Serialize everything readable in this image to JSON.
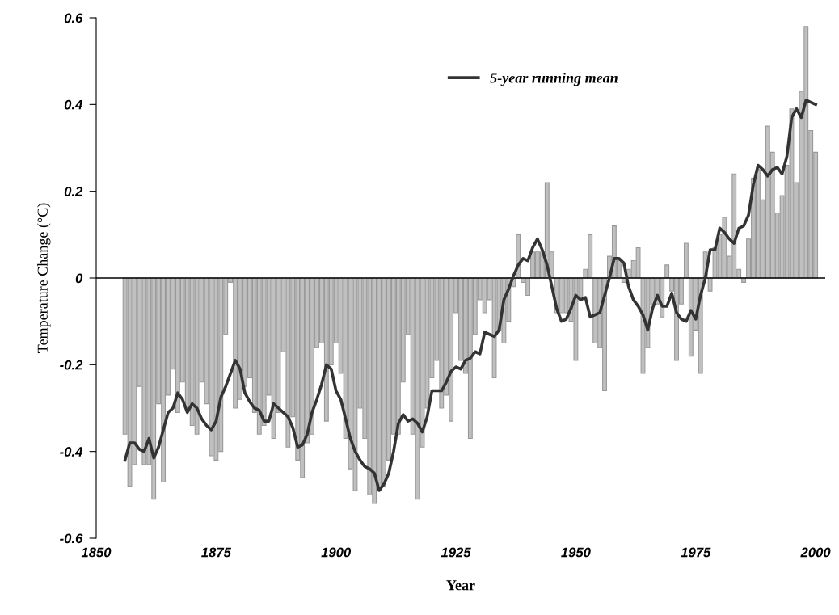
{
  "chart_data": {
    "type": "bar",
    "xlabel": "Year",
    "ylabel": "Temperature Change (°C)",
    "xlim": [
      1850,
      2002
    ],
    "ylim": [
      -0.6,
      0.6
    ],
    "xticks": [
      1850,
      1875,
      1900,
      1925,
      1950,
      1975,
      2000
    ],
    "yticks": [
      -0.6,
      -0.4,
      -0.2,
      0,
      0.2,
      0.4,
      0.6
    ],
    "grid": false,
    "legend": "top",
    "ref_lines": [
      {
        "axis": "y",
        "value": 0,
        "color": "#000000"
      }
    ],
    "series": [
      {
        "color": "#c0c0c0",
        "x": [
          1856,
          1857,
          1858,
          1859,
          1860,
          1861,
          1862,
          1863,
          1864,
          1865,
          1866,
          1867,
          1868,
          1869,
          1870,
          1871,
          1872,
          1873,
          1874,
          1875,
          1876,
          1877,
          1878,
          1879,
          1880,
          1881,
          1882,
          1883,
          1884,
          1885,
          1886,
          1887,
          1888,
          1889,
          1890,
          1891,
          1892,
          1893,
          1894,
          1895,
          1896,
          1897,
          1898,
          1899,
          1900,
          1901,
          1902,
          1903,
          1904,
          1905,
          1906,
          1907,
          1908,
          1909,
          1910,
          1911,
          1912,
          1913,
          1914,
          1915,
          1916,
          1917,
          1918,
          1919,
          1920,
          1921,
          1922,
          1923,
          1924,
          1925,
          1926,
          1927,
          1928,
          1929,
          1930,
          1931,
          1932,
          1933,
          1934,
          1935,
          1936,
          1937,
          1938,
          1939,
          1940,
          1941,
          1942,
          1943,
          1944,
          1945,
          1946,
          1947,
          1948,
          1949,
          1950,
          1951,
          1952,
          1953,
          1954,
          1955,
          1956,
          1957,
          1958,
          1959,
          1960,
          1961,
          1962,
          1963,
          1964,
          1965,
          1966,
          1967,
          1968,
          1969,
          1970,
          1971,
          1972,
          1973,
          1974,
          1975,
          1976,
          1977,
          1978,
          1979,
          1980,
          1981,
          1982,
          1983,
          1984,
          1985,
          1986,
          1987,
          1988,
          1989,
          1990,
          1991,
          1992,
          1993,
          1994,
          1995,
          1996,
          1997,
          1998,
          1999,
          2000
        ],
        "values": [
          -0.36,
          -0.48,
          -0.43,
          -0.25,
          -0.43,
          -0.43,
          -0.51,
          -0.29,
          -0.47,
          -0.27,
          -0.21,
          -0.31,
          -0.24,
          -0.3,
          -0.34,
          -0.36,
          -0.24,
          -0.29,
          -0.41,
          -0.42,
          -0.4,
          -0.13,
          -0.01,
          -0.3,
          -0.28,
          -0.25,
          -0.23,
          -0.31,
          -0.36,
          -0.34,
          -0.27,
          -0.37,
          -0.31,
          -0.17,
          -0.39,
          -0.32,
          -0.42,
          -0.46,
          -0.38,
          -0.36,
          -0.16,
          -0.15,
          -0.33,
          -0.2,
          -0.15,
          -0.22,
          -0.37,
          -0.44,
          -0.49,
          -0.3,
          -0.37,
          -0.5,
          -0.52,
          -0.49,
          -0.48,
          -0.42,
          -0.36,
          -0.36,
          -0.24,
          -0.13,
          -0.36,
          -0.51,
          -0.39,
          -0.3,
          -0.23,
          -0.19,
          -0.3,
          -0.27,
          -0.33,
          -0.08,
          -0.19,
          -0.22,
          -0.37,
          -0.13,
          -0.05,
          -0.08,
          -0.05,
          -0.23,
          -0.12,
          -0.15,
          -0.1,
          -0.02,
          0.1,
          -0.01,
          -0.04,
          0.06,
          0.06,
          0.06,
          0.22,
          0.06,
          -0.08,
          -0.08,
          -0.08,
          -0.1,
          -0.19,
          -0.05,
          0.02,
          0.1,
          -0.15,
          -0.16,
          -0.26,
          0.05,
          0.12,
          0.04,
          -0.01,
          0.02,
          0.04,
          0.07,
          -0.22,
          -0.16,
          -0.06,
          -0.06,
          -0.09,
          0.03,
          -0.03,
          -0.19,
          -0.06,
          0.08,
          -0.18,
          -0.12,
          -0.22,
          0.06,
          -0.03,
          0.07,
          0.1,
          0.14,
          0.05,
          0.24,
          0.02,
          -0.01,
          0.09,
          0.23,
          0.25,
          0.18,
          0.35,
          0.29,
          0.15,
          0.19,
          0.26,
          0.39,
          0.22,
          0.43,
          0.58,
          0.34,
          0.29
        ]
      },
      {
        "type": "line",
        "name": "5-year running mean",
        "color": "#333333",
        "x": [
          1856,
          1857,
          1858,
          1859,
          1860,
          1861,
          1862,
          1863,
          1864,
          1865,
          1866,
          1867,
          1868,
          1869,
          1870,
          1871,
          1872,
          1873,
          1874,
          1875,
          1876,
          1877,
          1878,
          1879,
          1880,
          1881,
          1882,
          1883,
          1884,
          1885,
          1886,
          1887,
          1888,
          1889,
          1890,
          1891,
          1892,
          1893,
          1894,
          1895,
          1896,
          1897,
          1898,
          1899,
          1900,
          1901,
          1902,
          1903,
          1904,
          1905,
          1906,
          1907,
          1908,
          1909,
          1910,
          1911,
          1912,
          1913,
          1914,
          1915,
          1916,
          1917,
          1918,
          1919,
          1920,
          1921,
          1922,
          1923,
          1924,
          1925,
          1926,
          1927,
          1928,
          1929,
          1930,
          1931,
          1932,
          1933,
          1934,
          1935,
          1936,
          1937,
          1938,
          1939,
          1940,
          1941,
          1942,
          1943,
          1944,
          1945,
          1946,
          1947,
          1948,
          1949,
          1950,
          1951,
          1952,
          1953,
          1954,
          1955,
          1956,
          1957,
          1958,
          1959,
          1960,
          1961,
          1962,
          1963,
          1964,
          1965,
          1966,
          1967,
          1968,
          1969,
          1970,
          1971,
          1972,
          1973,
          1974,
          1975,
          1976,
          1977,
          1978,
          1979,
          1980,
          1981,
          1982,
          1983,
          1984,
          1985,
          1986,
          1987,
          1988,
          1989,
          1990,
          1991,
          1992,
          1993,
          1994,
          1995,
          1996,
          1997,
          1998,
          1999,
          2000
        ],
        "values": [
          -0.42,
          -0.38,
          -0.38,
          -0.395,
          -0.4,
          -0.37,
          -0.415,
          -0.39,
          -0.35,
          -0.31,
          -0.3,
          -0.265,
          -0.28,
          -0.31,
          -0.29,
          -0.3,
          -0.325,
          -0.34,
          -0.35,
          -0.33,
          -0.275,
          -0.25,
          -0.22,
          -0.19,
          -0.21,
          -0.265,
          -0.285,
          -0.3,
          -0.305,
          -0.33,
          -0.33,
          -0.29,
          -0.3,
          -0.31,
          -0.32,
          -0.345,
          -0.39,
          -0.385,
          -0.36,
          -0.31,
          -0.28,
          -0.245,
          -0.2,
          -0.21,
          -0.26,
          -0.28,
          -0.325,
          -0.37,
          -0.4,
          -0.42,
          -0.435,
          -0.44,
          -0.45,
          -0.49,
          -0.475,
          -0.45,
          -0.4,
          -0.335,
          -0.315,
          -0.33,
          -0.325,
          -0.335,
          -0.355,
          -0.32,
          -0.26,
          -0.26,
          -0.26,
          -0.24,
          -0.215,
          -0.205,
          -0.21,
          -0.19,
          -0.185,
          -0.17,
          -0.175,
          -0.125,
          -0.13,
          -0.135,
          -0.12,
          -0.05,
          -0.025,
          0.005,
          0.03,
          0.045,
          0.04,
          0.07,
          0.09,
          0.065,
          0.03,
          -0.02,
          -0.07,
          -0.1,
          -0.095,
          -0.07,
          -0.04,
          -0.05,
          -0.045,
          -0.09,
          -0.085,
          -0.08,
          -0.04,
          0.0,
          0.045,
          0.045,
          0.035,
          -0.02,
          -0.05,
          -0.065,
          -0.085,
          -0.12,
          -0.07,
          -0.04,
          -0.065,
          -0.065,
          -0.035,
          -0.08,
          -0.095,
          -0.1,
          -0.075,
          -0.095,
          -0.04,
          0.0,
          0.065,
          0.065,
          0.115,
          0.105,
          0.09,
          0.08,
          0.115,
          0.12,
          0.145,
          0.215,
          0.26,
          0.25,
          0.235,
          0.25,
          0.255,
          0.24,
          0.28,
          0.37,
          0.39,
          0.37,
          0.41,
          0.405,
          0.4
        ]
      }
    ]
  }
}
